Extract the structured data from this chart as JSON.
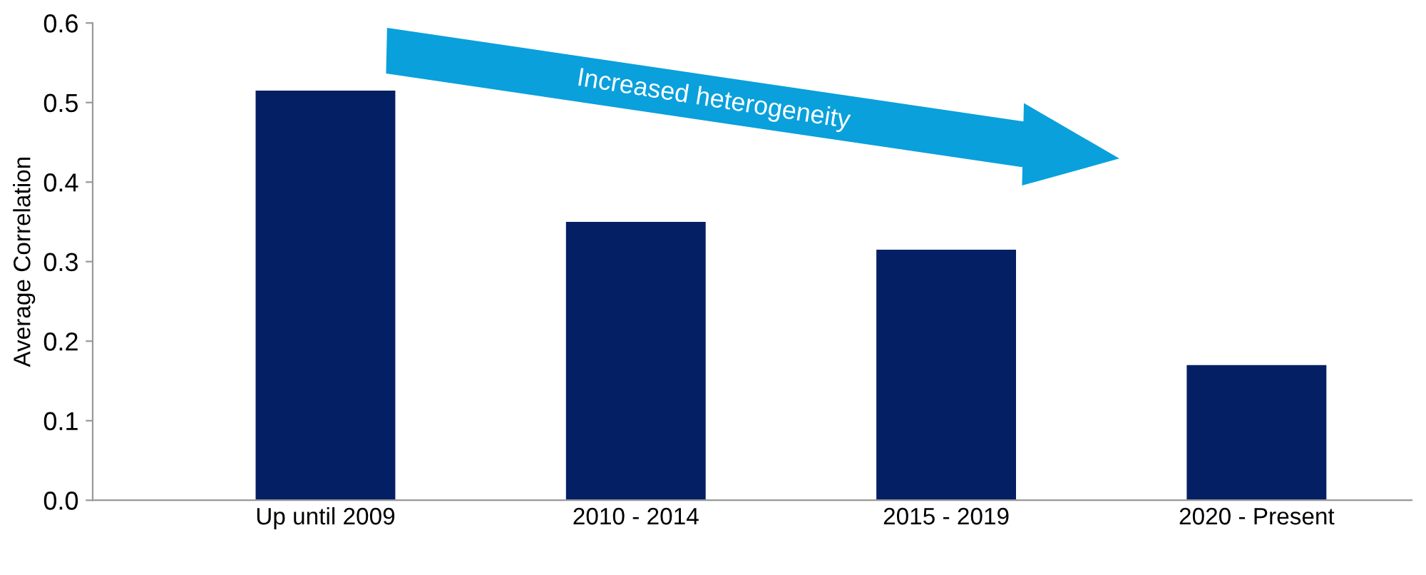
{
  "chart_data": {
    "type": "bar",
    "ylabel": "Average Correlation",
    "categories": [
      "Up until 2009",
      "2010 - 2014",
      "2015 - 2019",
      "2020 - Present"
    ],
    "values": [
      0.515,
      0.35,
      0.315,
      0.17
    ],
    "color": "#041f63",
    "ylim": [
      0,
      0.6
    ],
    "yticks": [
      {
        "value": 0,
        "label": "0.0"
      },
      {
        "value": 0.1,
        "label": "0.1"
      },
      {
        "value": 0.2,
        "label": "0.2"
      },
      {
        "value": 0.3,
        "label": "0.3"
      },
      {
        "value": 0.4,
        "label": "0.4"
      },
      {
        "value": 0.5,
        "label": "0.5"
      },
      {
        "value": 0.6,
        "label": "0.6"
      }
    ],
    "annotations": [
      "Increased heterogeneity"
    ],
    "grid": false
  }
}
